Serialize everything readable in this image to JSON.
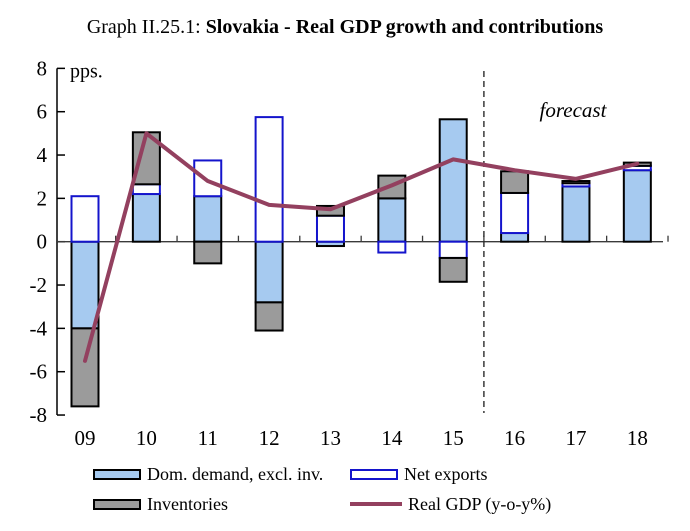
{
  "title": {
    "prefix": "Graph II.25.1: ",
    "main": "Slovakia - Real GDP growth and contributions"
  },
  "chart_data": {
    "type": "bar",
    "stacked": true,
    "unit_label": "pps.",
    "categories": [
      "09",
      "10",
      "11",
      "12",
      "13",
      "14",
      "15",
      "16",
      "17",
      "18"
    ],
    "series": [
      {
        "name": "Dom. demand, excl. inv.",
        "values": [
          -4.0,
          2.2,
          2.1,
          -2.8,
          -0.2,
          2.0,
          5.65,
          0.4,
          2.55,
          3.3
        ],
        "fill": "#A6CAF0",
        "border": "#000000"
      },
      {
        "name": "Net exports",
        "values": [
          2.1,
          0.45,
          1.65,
          5.75,
          1.2,
          -0.5,
          -0.75,
          1.85,
          0.15,
          0.2
        ],
        "fill": "#FFFFFF",
        "border": "#1414CC"
      },
      {
        "name": "Inventories",
        "values": [
          -3.6,
          2.4,
          -1.0,
          -1.3,
          0.45,
          1.05,
          -1.1,
          1.0,
          0.1,
          0.15
        ],
        "fill": "#9B9B9B",
        "border": "#000000"
      }
    ],
    "line_series": {
      "name": "Real GDP (y-o-y%)",
      "values": [
        -5.5,
        5.0,
        2.8,
        1.7,
        1.5,
        2.6,
        3.8,
        3.3,
        2.9,
        3.6
      ],
      "color": "#93405F"
    },
    "ylim": [
      -8,
      8
    ],
    "ytick_step": 2,
    "ytick_labels": [
      "-8",
      "-6",
      "-4",
      "-2",
      "0",
      "2",
      "4",
      "6",
      "8"
    ],
    "grid": false,
    "legend_position": "bottom",
    "forecast": {
      "label": "forecast",
      "divider_after_index": 6
    }
  },
  "legend": {
    "dom_demand": "Dom. demand, excl. inv.",
    "net_exports": "Net exports",
    "inventories": "Inventories",
    "real_gdp": "Real GDP (y-o-y%)"
  }
}
